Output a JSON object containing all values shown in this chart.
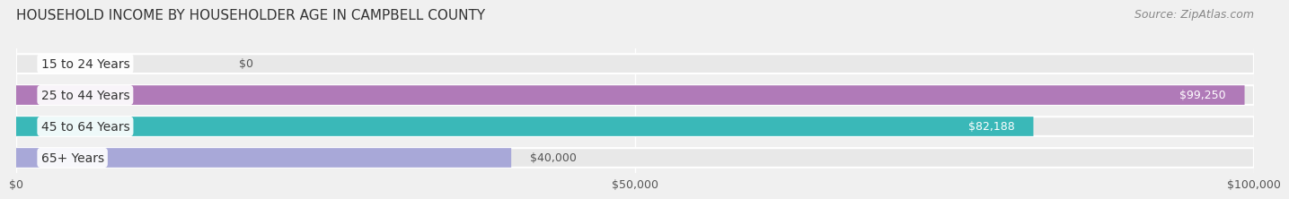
{
  "title": "HOUSEHOLD INCOME BY HOUSEHOLDER AGE IN CAMPBELL COUNTY",
  "source": "Source: ZipAtlas.com",
  "categories": [
    "15 to 24 Years",
    "25 to 44 Years",
    "45 to 64 Years",
    "65+ Years"
  ],
  "values": [
    0,
    99250,
    82188,
    40000
  ],
  "bar_colors": [
    "#a8b8d0",
    "#b07ab8",
    "#3ab8b8",
    "#a8a8d8"
  ],
  "label_colors": [
    "#555555",
    "#ffffff",
    "#ffffff",
    "#555555"
  ],
  "x_max": 100000,
  "x_ticks": [
    0,
    50000,
    100000
  ],
  "x_tick_labels": [
    "$0",
    "$50,000",
    "$100,000"
  ],
  "value_labels": [
    "$0",
    "$99,250",
    "$82,188",
    "$40,000"
  ],
  "background_color": "#f0f0f0",
  "bar_background_color": "#e8e8e8",
  "title_fontsize": 11,
  "source_fontsize": 9,
  "label_fontsize": 10,
  "value_fontsize": 9
}
